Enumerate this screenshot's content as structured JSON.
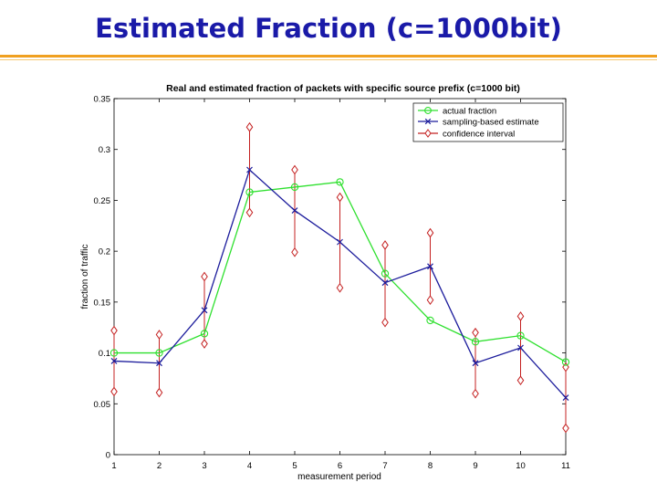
{
  "slide": {
    "title": "Estimated Fraction (c=1000bit)"
  },
  "chart_data": {
    "type": "line",
    "title": "Real and estimated fraction of packets with specific source prefix (c=1000 bit)",
    "xlabel": "measurement period",
    "ylabel": "fraction of traffic",
    "xlim": [
      1,
      11
    ],
    "ylim": [
      0,
      0.35
    ],
    "x_ticks": [
      1,
      2,
      3,
      4,
      5,
      6,
      7,
      8,
      9,
      10,
      11
    ],
    "x_tick_labels": [
      "1",
      "2",
      "3",
      "4",
      "5",
      "6",
      "7",
      "8",
      "9",
      "10",
      "11"
    ],
    "y_ticks": [
      0,
      0.05,
      0.1,
      0.15,
      0.2,
      0.25,
      0.3,
      0.35
    ],
    "y_tick_labels": [
      "0",
      "0.05",
      "0.1",
      "0.15",
      "0.2",
      "0.25",
      "0.3",
      "0.35"
    ],
    "grid": false,
    "legend_position": "top-right",
    "x": [
      1,
      2,
      3,
      4,
      5,
      6,
      7,
      8,
      9,
      10,
      11
    ],
    "series": [
      {
        "name": "actual fraction",
        "color": "#2ee02e",
        "marker": "circle",
        "values": [
          0.1,
          0.1,
          0.119,
          0.258,
          0.263,
          0.268,
          0.178,
          0.132,
          0.111,
          0.117,
          0.091
        ]
      },
      {
        "name": "sampling-based estimate",
        "color": "#1c1c9c",
        "marker": "x",
        "values": [
          0.092,
          0.09,
          0.142,
          0.28,
          0.24,
          0.209,
          0.169,
          0.185,
          0.09,
          0.105,
          0.056
        ]
      },
      {
        "name": "confidence interval",
        "color": "#c42020",
        "marker": "diamond",
        "lower": [
          0.062,
          0.061,
          0.109,
          0.238,
          0.199,
          0.164,
          0.13,
          0.152,
          0.06,
          0.073,
          0.026
        ],
        "upper": [
          0.122,
          0.118,
          0.175,
          0.322,
          0.28,
          0.253,
          0.206,
          0.218,
          0.12,
          0.136,
          0.086
        ]
      }
    ]
  }
}
